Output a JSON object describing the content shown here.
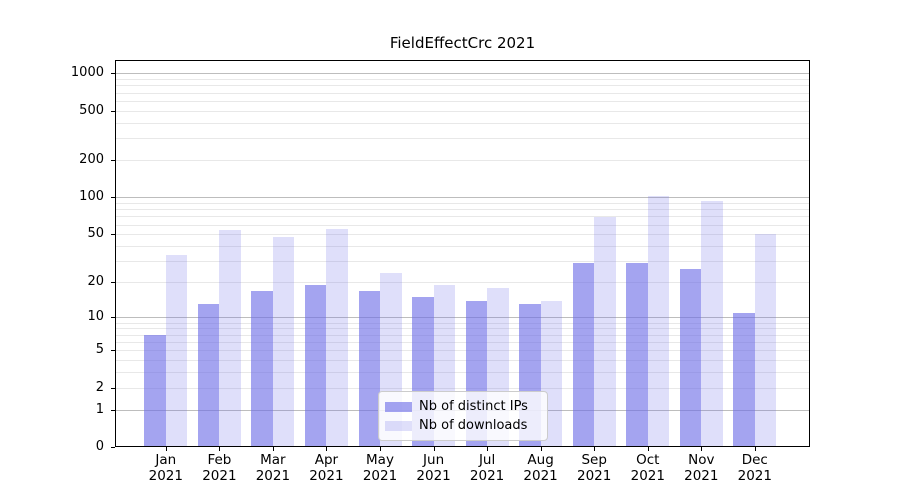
{
  "title": "FieldEffectCrc 2021",
  "chart_data": {
    "type": "bar",
    "title": "FieldEffectCrc 2021",
    "year_label": "2021",
    "categories": [
      "Jan",
      "Feb",
      "Mar",
      "Apr",
      "May",
      "Jun",
      "Jul",
      "Aug",
      "Sep",
      "Oct",
      "Nov",
      "Dec"
    ],
    "series": [
      {
        "name": "Nb of distinct IPs",
        "color": "rgba(108,108,230,0.62)",
        "observed_hex": "#a4a4ef",
        "values": [
          7,
          13,
          17,
          19,
          17,
          15,
          14,
          13,
          29,
          29,
          26,
          11
        ]
      },
      {
        "name": "Nb of downloads",
        "color": "rgba(108,108,230,0.22)",
        "observed_hex": "#dedefa",
        "values": [
          34,
          54,
          48,
          55,
          24,
          19,
          18,
          14,
          69,
          102,
          94,
          50
        ]
      }
    ],
    "xlabel": "",
    "ylabel": "",
    "yscale": "log1p",
    "ylim": [
      0,
      1280
    ],
    "yticks": [
      0,
      1,
      2,
      5,
      10,
      20,
      50,
      100,
      200,
      500,
      1000
    ],
    "major_gridlines": [
      1,
      10,
      100,
      1000
    ],
    "minor_gridlines": [
      2,
      3,
      4,
      5,
      6,
      7,
      8,
      9,
      20,
      30,
      40,
      50,
      60,
      70,
      80,
      90,
      200,
      300,
      400,
      500,
      600,
      700,
      800,
      900
    ],
    "grid": true,
    "legend_position": "lower center",
    "colors": {
      "major_gridline": "#bdbdbd",
      "minor_gridline": "#e8e8e8",
      "axis": "#000000",
      "background": "#ffffff"
    }
  }
}
